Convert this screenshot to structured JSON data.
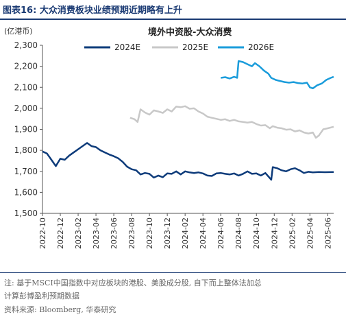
{
  "figure": {
    "number_label": "图表16:",
    "title": "大众消费板块业绩预期近期略有上升"
  },
  "notes": {
    "note1": "注: 基于MSCI中国指数中对应板块的港股、美股成分股, 自下而上整体法加总",
    "note2": "计算彭博盈利预期数据",
    "source": "资料来源: Bloomberg, 华泰研究"
  },
  "chart_data": {
    "type": "line",
    "title": "境外中资股-大众消费",
    "unit": "(亿港币)",
    "ylim": [
      1500,
      2300
    ],
    "yticks": [
      "2,300",
      "2,200",
      "2,100",
      "2,000",
      "1,900",
      "1,800",
      "1,700",
      "1,600",
      "1,500"
    ],
    "ytick_values": [
      2300,
      2200,
      2100,
      2000,
      1900,
      1800,
      1700,
      1600,
      1500
    ],
    "xticks": [
      "2022-10",
      "2022-12",
      "2023-02",
      "2023-04",
      "2023-06",
      "2023-08",
      "2023-10",
      "2023-12",
      "2024-02",
      "2024-04",
      "2024-06",
      "2024-08",
      "2024-10",
      "2024-12",
      "2025-02",
      "2025-04",
      "2025-06"
    ],
    "xlim": [
      0,
      9.8
    ],
    "legend_placement": "top",
    "grid": false,
    "series": [
      {
        "name": "2024E",
        "color": "#0d3b7a",
        "points": [
          [
            0,
            1795
          ],
          [
            0.15,
            1785
          ],
          [
            0.3,
            1755
          ],
          [
            0.45,
            1725
          ],
          [
            0.6,
            1760
          ],
          [
            0.75,
            1755
          ],
          [
            0.9,
            1775
          ],
          [
            1.05,
            1790
          ],
          [
            1.2,
            1805
          ],
          [
            1.35,
            1820
          ],
          [
            1.5,
            1835
          ],
          [
            1.65,
            1820
          ],
          [
            1.8,
            1815
          ],
          [
            1.95,
            1800
          ],
          [
            2.1,
            1790
          ],
          [
            2.25,
            1780
          ],
          [
            2.4,
            1772
          ],
          [
            2.55,
            1762
          ],
          [
            2.7,
            1745
          ],
          [
            2.85,
            1722
          ],
          [
            3.0,
            1710
          ],
          [
            3.15,
            1705
          ],
          [
            3.3,
            1685
          ],
          [
            3.45,
            1692
          ],
          [
            3.6,
            1688
          ],
          [
            3.75,
            1670
          ],
          [
            3.9,
            1680
          ],
          [
            4.05,
            1672
          ],
          [
            4.2,
            1690
          ],
          [
            4.35,
            1688
          ],
          [
            4.5,
            1700
          ],
          [
            4.65,
            1685
          ],
          [
            4.8,
            1700
          ],
          [
            4.95,
            1695
          ],
          [
            5.1,
            1692
          ],
          [
            5.25,
            1695
          ],
          [
            5.4,
            1690
          ],
          [
            5.55,
            1680
          ],
          [
            5.7,
            1678
          ],
          [
            5.85,
            1690
          ],
          [
            6.0,
            1692
          ],
          [
            6.15,
            1688
          ],
          [
            6.3,
            1685
          ],
          [
            6.45,
            1690
          ],
          [
            6.6,
            1680
          ],
          [
            6.75,
            1688
          ],
          [
            6.9,
            1700
          ],
          [
            7.05,
            1688
          ],
          [
            7.2,
            1690
          ],
          [
            7.35,
            1680
          ],
          [
            7.5,
            1692
          ],
          [
            7.65,
            1668
          ],
          [
            7.7,
            1660
          ],
          [
            7.75,
            1720
          ],
          [
            7.9,
            1715
          ],
          [
            8.05,
            1705
          ],
          [
            8.2,
            1700
          ],
          [
            8.35,
            1710
          ],
          [
            8.5,
            1715
          ],
          [
            8.65,
            1705
          ],
          [
            8.8,
            1692
          ],
          [
            8.95,
            1698
          ],
          [
            9.1,
            1695
          ],
          [
            9.3,
            1697
          ],
          [
            9.5,
            1696
          ],
          [
            9.8,
            1697
          ]
        ]
      },
      {
        "name": "2025E",
        "color": "#c8c8c8",
        "points": [
          [
            2.95,
            1955
          ],
          [
            3.1,
            1948
          ],
          [
            3.2,
            1935
          ],
          [
            3.3,
            1995
          ],
          [
            3.45,
            1980
          ],
          [
            3.6,
            1970
          ],
          [
            3.75,
            1990
          ],
          [
            3.9,
            1985
          ],
          [
            4.05,
            1978
          ],
          [
            4.2,
            1995
          ],
          [
            4.35,
            1985
          ],
          [
            4.5,
            2008
          ],
          [
            4.65,
            2005
          ],
          [
            4.8,
            2010
          ],
          [
            4.95,
            1998
          ],
          [
            5.1,
            2000
          ],
          [
            5.25,
            1985
          ],
          [
            5.4,
            1975
          ],
          [
            5.55,
            1960
          ],
          [
            5.7,
            1955
          ],
          [
            5.85,
            1950
          ],
          [
            6.0,
            1945
          ],
          [
            6.15,
            1948
          ],
          [
            6.3,
            1940
          ],
          [
            6.45,
            1945
          ],
          [
            6.6,
            1938
          ],
          [
            6.75,
            1935
          ],
          [
            6.9,
            1932
          ],
          [
            7.05,
            1935
          ],
          [
            7.2,
            1925
          ],
          [
            7.35,
            1918
          ],
          [
            7.5,
            1920
          ],
          [
            7.65,
            1905
          ],
          [
            7.75,
            1915
          ],
          [
            7.9,
            1908
          ],
          [
            8.05,
            1905
          ],
          [
            8.2,
            1898
          ],
          [
            8.35,
            1900
          ],
          [
            8.5,
            1890
          ],
          [
            8.65,
            1895
          ],
          [
            8.8,
            1885
          ],
          [
            8.95,
            1880
          ],
          [
            9.1,
            1885
          ],
          [
            9.2,
            1860
          ],
          [
            9.3,
            1870
          ],
          [
            9.45,
            1900
          ],
          [
            9.6,
            1905
          ],
          [
            9.8,
            1912
          ]
        ]
      },
      {
        "name": "2026E",
        "color": "#1a9cdb",
        "points": [
          [
            6.0,
            2145
          ],
          [
            6.15,
            2148
          ],
          [
            6.3,
            2142
          ],
          [
            6.45,
            2150
          ],
          [
            6.55,
            2145
          ],
          [
            6.6,
            2225
          ],
          [
            6.75,
            2220
          ],
          [
            6.9,
            2210
          ],
          [
            7.05,
            2200
          ],
          [
            7.15,
            2215
          ],
          [
            7.3,
            2200
          ],
          [
            7.45,
            2180
          ],
          [
            7.6,
            2165
          ],
          [
            7.7,
            2145
          ],
          [
            7.85,
            2135
          ],
          [
            8.0,
            2130
          ],
          [
            8.15,
            2125
          ],
          [
            8.3,
            2122
          ],
          [
            8.45,
            2125
          ],
          [
            8.6,
            2120
          ],
          [
            8.75,
            2118
          ],
          [
            8.9,
            2122
          ],
          [
            9.0,
            2100
          ],
          [
            9.1,
            2095
          ],
          [
            9.25,
            2110
          ],
          [
            9.4,
            2118
          ],
          [
            9.55,
            2135
          ],
          [
            9.7,
            2145
          ],
          [
            9.8,
            2150
          ]
        ]
      }
    ]
  }
}
